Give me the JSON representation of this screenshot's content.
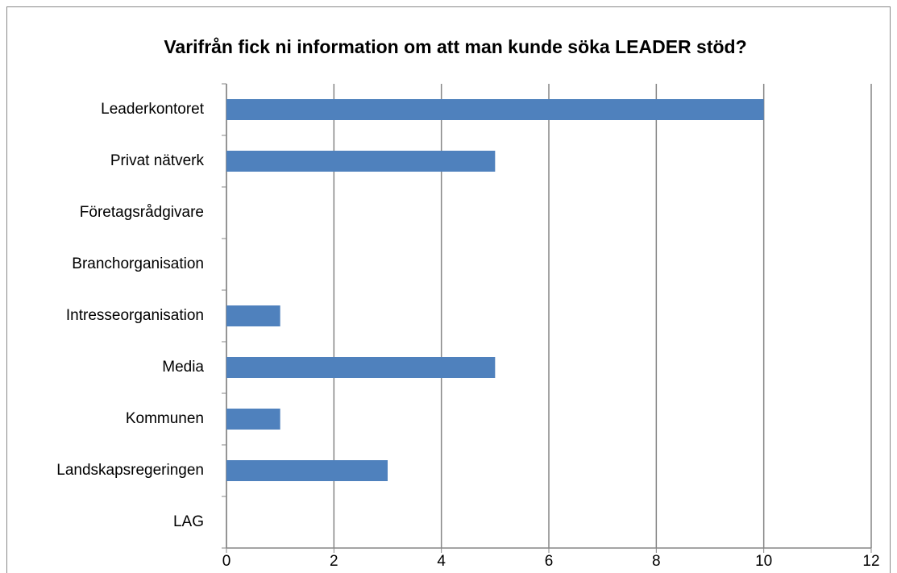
{
  "chart_data": {
    "type": "bar",
    "orientation": "horizontal",
    "title": "Varifrån fick ni information om att man kunde söka LEADER stöd?",
    "categories": [
      "Leaderkontoret",
      "Privat nätverk",
      "Företagsrådgivare",
      "Branchorganisation",
      "Intresseorganisation",
      "Media",
      "Kommunen",
      "Landskapsregeringen",
      "LAG"
    ],
    "values": [
      10,
      5,
      0,
      0,
      1,
      5,
      1,
      3,
      0
    ],
    "color": "#4f81bd",
    "xlim": [
      0,
      12
    ],
    "xticks": [
      0,
      2,
      4,
      6,
      8,
      10,
      12
    ],
    "grid": true
  }
}
